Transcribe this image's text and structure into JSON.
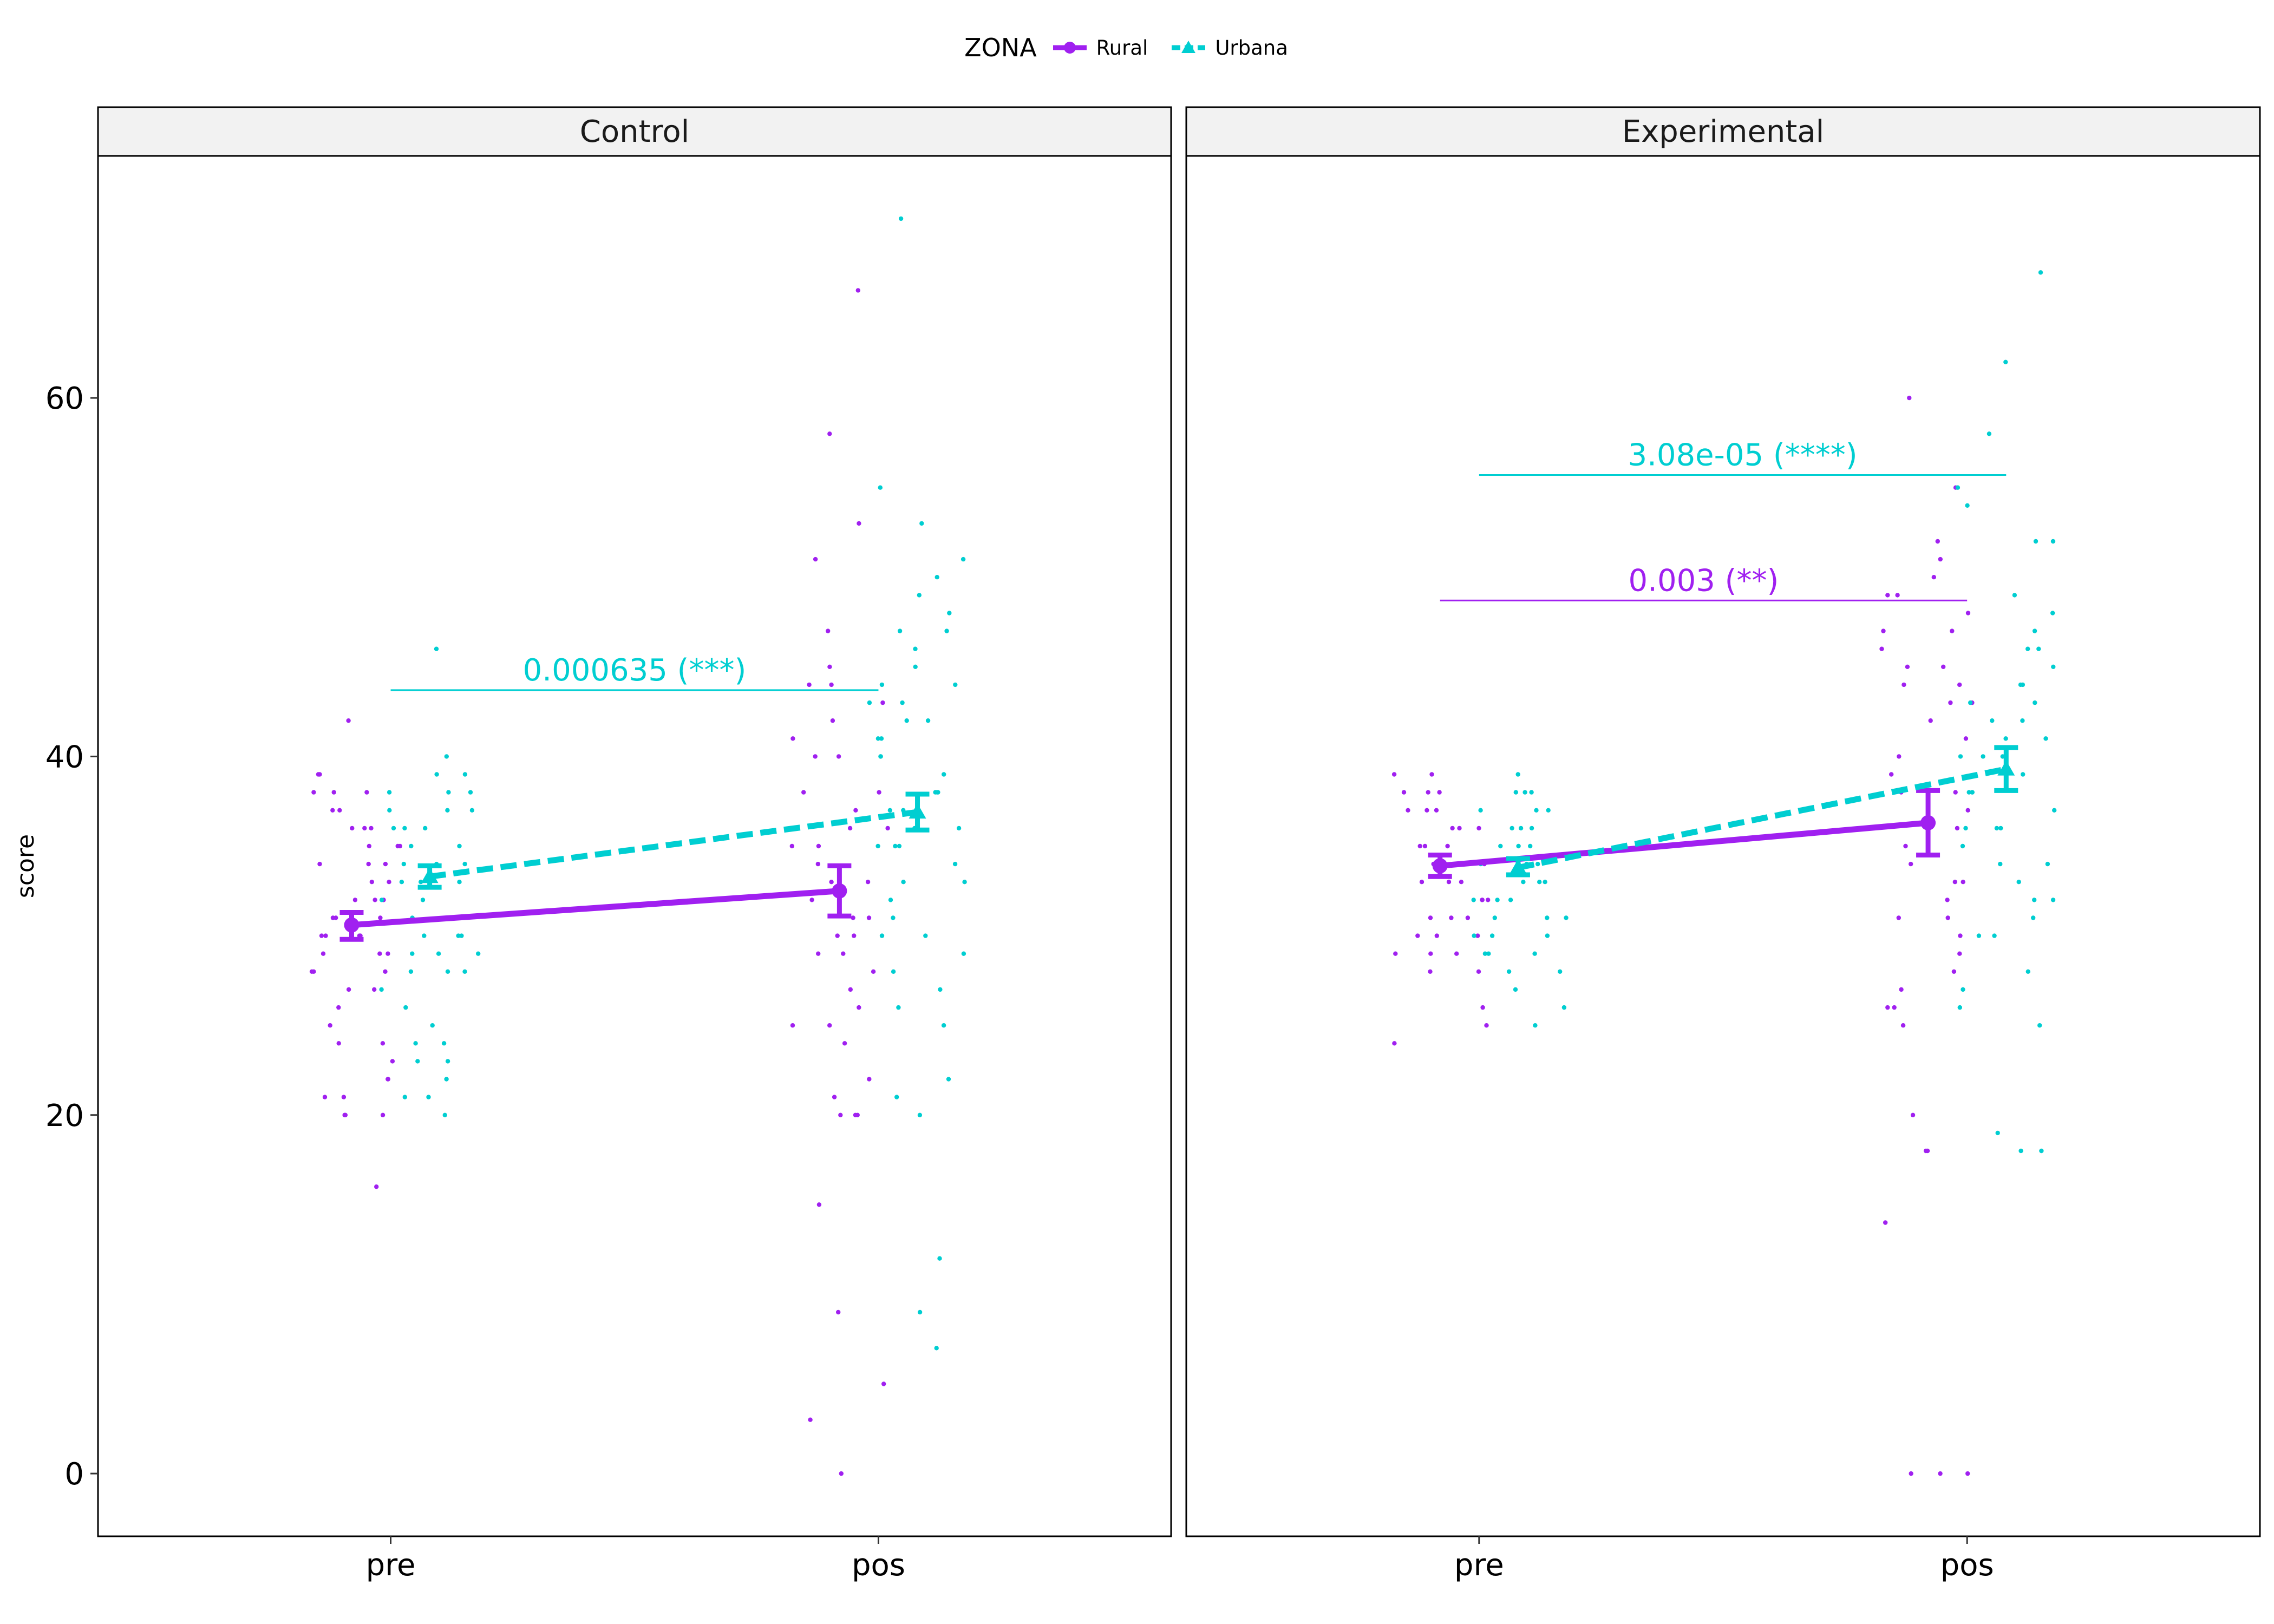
{
  "colors": {
    "Rural": "#A020F0",
    "Urbana": "#00CED1",
    "strip_bg": "#F2F2F2"
  },
  "legend": {
    "title": "ZONA",
    "items": [
      {
        "label": "Rural",
        "icon": "circle-marker",
        "line": "solid"
      },
      {
        "label": "Urbana",
        "icon": "triangle-marker",
        "line": "dashed"
      }
    ]
  },
  "chart_data": {
    "type": "scatter",
    "ylabel": "score",
    "xlabel": "",
    "ylim": [
      -3.5,
      73.5
    ],
    "yticks": [
      0,
      20,
      40,
      60
    ],
    "categories": [
      "pre",
      "pos"
    ],
    "panels": [
      {
        "name": "Control",
        "series": [
          {
            "name": "Rural",
            "mean": [
              30.6,
              32.5
            ],
            "ci_low": [
              29.8,
              31.1
            ],
            "ci_high": [
              31.3,
              33.9
            ]
          },
          {
            "name": "Urbana",
            "mean": [
              33.3,
              36.9
            ],
            "ci_low": [
              32.7,
              35.9
            ],
            "ci_high": [
              33.9,
              37.9
            ]
          }
        ],
        "annotations": [
          {
            "text": "0.000635 (***)",
            "series": "Urbana",
            "y": 43.7
          }
        ],
        "points": {
          "Rural": {
            "pre": [
              38,
              37,
              36,
              35,
              35,
              34,
              34,
              33,
              33,
              32,
              32,
              31,
              31,
              30,
              30,
              30,
              29,
              29,
              29,
              28,
              28,
              27,
              27,
              26,
              25,
              24,
              23,
              22,
              21,
              20,
              20,
              39,
              39,
              38,
              37,
              36,
              35,
              42,
              16,
              21,
              20,
              22,
              24,
              31,
              32,
              34,
              36,
              38,
              30,
              28
            ],
            "pos": [
              66,
              58,
              53,
              51,
              47,
              45,
              44,
              43,
              42,
              41,
              40,
              38,
              37,
              36,
              35,
              34,
              33,
              32,
              31,
              30,
              29,
              28,
              27,
              26,
              25,
              24,
              21,
              20,
              20,
              15,
              9,
              5,
              3,
              0,
              38,
              36,
              35,
              31,
              30,
              25,
              22,
              20,
              29,
              33,
              36,
              40,
              44
            ]
          },
          "Urbana": {
            "pre": [
              46,
              40,
              39,
              39,
              38,
              38,
              37,
              37,
              36,
              36,
              35,
              35,
              34,
              34,
              33,
              33,
              32,
              32,
              31,
              31,
              30,
              30,
              29,
              29,
              28,
              28,
              27,
              26,
              25,
              24,
              23,
              22,
              21,
              20,
              38,
              37,
              36,
              34,
              33,
              31,
              30,
              29,
              28,
              24,
              23,
              21
            ],
            "pos": [
              70,
              55,
              53,
              51,
              50,
              49,
              48,
              47,
              47,
              46,
              45,
              44,
              44,
              43,
              43,
              42,
              42,
              41,
              41,
              40,
              40,
              39,
              38,
              38,
              37,
              37,
              36,
              36,
              35,
              35,
              34,
              33,
              33,
              32,
              31,
              30,
              29,
              28,
              27,
              26,
              22,
              21,
              20,
              12,
              9,
              7,
              38,
              35,
              30,
              25
            ]
          }
        }
      },
      {
        "name": "Experimental",
        "series": [
          {
            "name": "Rural",
            "mean": [
              33.9,
              36.3
            ],
            "ci_low": [
              33.3,
              34.5
            ],
            "ci_high": [
              34.5,
              38.1
            ]
          },
          {
            "name": "Urbana",
            "mean": [
              33.8,
              39.3
            ],
            "ci_low": [
              33.4,
              38.1
            ],
            "ci_high": [
              34.3,
              40.5
            ]
          }
        ],
        "annotations": [
          {
            "text": "0.003 (**)",
            "series": "Rural",
            "y": 48.7
          },
          {
            "text": "3.08e-05 (****)",
            "series": "Urbana",
            "y": 55.7
          }
        ],
        "points": {
          "Rural": {
            "pre": [
              39,
              38,
              38,
              37,
              37,
              36,
              36,
              35,
              35,
              34,
              34,
              33,
              33,
              32,
              32,
              31,
              31,
              30,
              30,
              29,
              29,
              28,
              26,
              25,
              24,
              39,
              38,
              37,
              36,
              35,
              34,
              33,
              32,
              31,
              30,
              29,
              28
            ],
            "pos": [
              60,
              55,
              52,
              51,
              50,
              49,
              48,
              47,
              46,
              45,
              45,
              44,
              43,
              43,
              42,
              41,
              40,
              39,
              38,
              37,
              36,
              35,
              34,
              33,
              33,
              32,
              31,
              31,
              30,
              29,
              28,
              27,
              26,
              26,
              25,
              20,
              18,
              18,
              14,
              0,
              0,
              0,
              49,
              47,
              44,
              38
            ]
          },
          "Urbana": {
            "pre": [
              39,
              38,
              38,
              37,
              37,
              36,
              36,
              35,
              35,
              34,
              34,
              33,
              33,
              32,
              32,
              31,
              31,
              30,
              30,
              29,
              29,
              28,
              28,
              27,
              26,
              25,
              38,
              37,
              36,
              35,
              34,
              33,
              32,
              31,
              30,
              29
            ],
            "pos": [
              67,
              62,
              58,
              55,
              54,
              52,
              52,
              49,
              48,
              47,
              46,
              46,
              45,
              44,
              44,
              43,
              43,
              42,
              42,
              41,
              41,
              40,
              40,
              39,
              38,
              38,
              37,
              36,
              36,
              35,
              34,
              34,
              33,
              32,
              32,
              31,
              30,
              30,
              28,
              27,
              26,
              25,
              19,
              18,
              18,
              40,
              38,
              36
            ]
          }
        }
      }
    ]
  }
}
